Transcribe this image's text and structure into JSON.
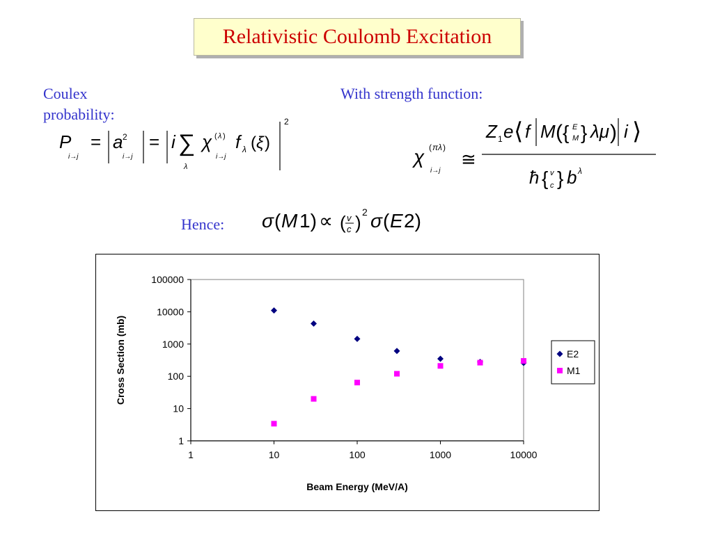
{
  "slide": {
    "title": "Relativistic Coulomb Excitation",
    "coulex_label": "Coulex probability:",
    "strength_label": "With strength function:",
    "hence_label": "Hence:"
  },
  "equations": {
    "coulex": "P_{i→j} = |a²_{i→j}| = |i Σ_λ χ^{(λ)}_{i→j} f_λ(ξ)|²",
    "strength": "χ^{(πλ)}_{i→j} ≅ Z₁e⟨f|M({E M} λμ)|i⟩ / ħ{v c} b^λ",
    "hence": "σ(M1) ∝ (v/c)² σ(E2)"
  },
  "chart_data": {
    "type": "scatter",
    "xscale": "log",
    "yscale": "log",
    "xlim": [
      1,
      10000
    ],
    "ylim": [
      1,
      100000
    ],
    "xlabel": "Beam Energy (MeV/A)",
    "ylabel": "Cross Section (mb)",
    "title": "",
    "x_ticks": [
      "1",
      "10",
      "100",
      "1000",
      "10000"
    ],
    "y_ticks": [
      "1",
      "10",
      "100",
      "1000",
      "10000",
      "100000"
    ],
    "grid": false,
    "legend": "right",
    "series": [
      {
        "name": "E2",
        "marker": "diamond",
        "color": "#000080",
        "x": [
          10,
          30,
          100,
          300,
          1000,
          3000,
          10000
        ],
        "y": [
          11000,
          4300,
          1450,
          610,
          350,
          280,
          260
        ]
      },
      {
        "name": "M1",
        "marker": "square",
        "color": "#ff00ff",
        "x": [
          10,
          30,
          100,
          300,
          1000,
          3000,
          10000
        ],
        "y": [
          3.4,
          20,
          64,
          120,
          210,
          265,
          300
        ]
      }
    ]
  }
}
